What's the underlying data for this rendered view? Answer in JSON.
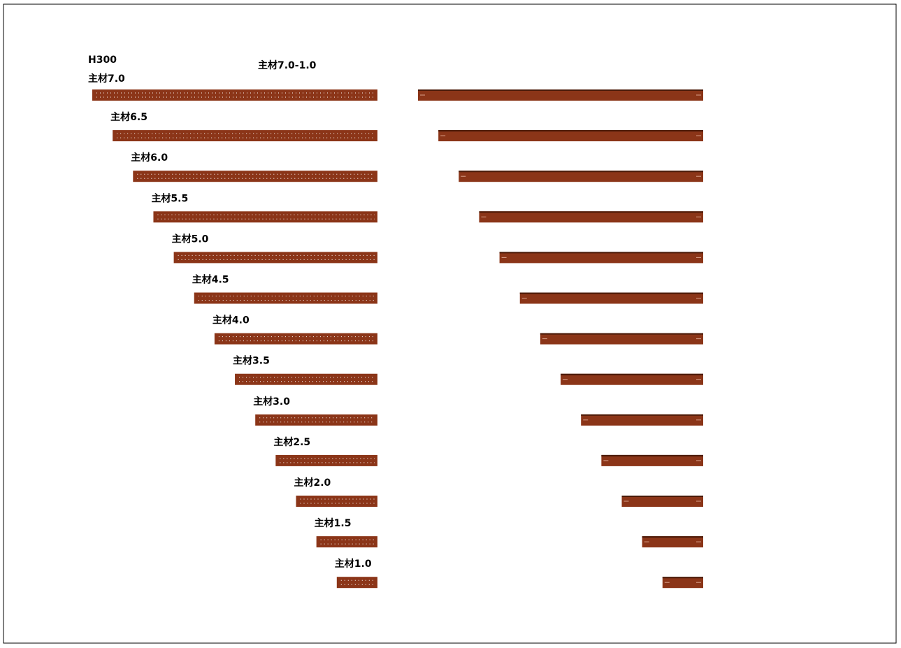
{
  "header": {
    "title": "H300",
    "subtitle": "主材7.0-1.0"
  },
  "members": [
    "主材7.0",
    "主材6.5",
    "主材6.0",
    "主材5.5",
    "主材5.0",
    "主材4.5",
    "主材4.0",
    "主材3.5",
    "主材3.0",
    "主材2.5",
    "主材2.0",
    "主材1.5",
    "主材1.0"
  ]
}
